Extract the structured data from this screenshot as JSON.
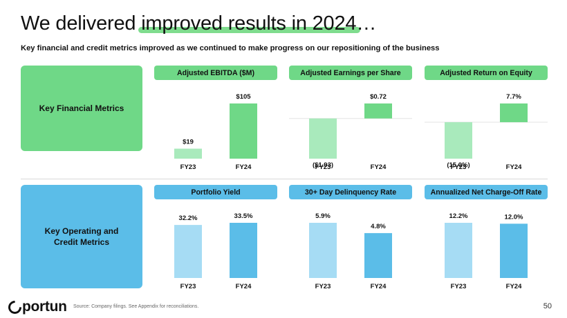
{
  "header": {
    "title_pre": "We delivered ",
    "title_highlight": "improved results in 2024",
    "title_post": "…",
    "subtitle": "Key financial and credit metrics improved as we continued to make progress on our repositioning of the business"
  },
  "sections": {
    "financial": "Key Financial Metrics",
    "operating": "Key Operating and\nCredit Metrics"
  },
  "colors": {
    "green_dark": "#6fd887",
    "green_light": "#a9eabc",
    "blue_dark": "#5bbde8",
    "blue_light": "#a6dcf4",
    "header_green": "#6fd887",
    "header_blue": "#5bbde8"
  },
  "chart_data": [
    {
      "type": "bar",
      "title": "Adjusted EBITDA ($M)",
      "categories": [
        "FY23",
        "FY24"
      ],
      "values": [
        19,
        105
      ],
      "labels": [
        "$19",
        "$105"
      ],
      "theme": "green",
      "ylim": [
        0,
        105
      ]
    },
    {
      "type": "bar",
      "title": "Adjusted Earnings per Share",
      "categories": [
        "FY23",
        "FY24"
      ],
      "values": [
        -1.93,
        0.72
      ],
      "labels": [
        "($1.93)",
        "$0.72"
      ],
      "theme": "green",
      "ylim": [
        -1.93,
        0.72
      ]
    },
    {
      "type": "bar",
      "title": "Adjusted Return on Equity",
      "categories": [
        "FY23",
        "FY24"
      ],
      "values": [
        -15.0,
        7.7
      ],
      "labels": [
        "(15.0%)",
        "7.7%"
      ],
      "theme": "green",
      "ylim": [
        -15.0,
        7.7
      ]
    },
    {
      "type": "bar",
      "title": "Portfolio Yield",
      "categories": [
        "FY23",
        "FY24"
      ],
      "values": [
        32.2,
        33.5
      ],
      "labels": [
        "32.2%",
        "33.5%"
      ],
      "theme": "blue",
      "ylim": [
        0,
        33.5
      ]
    },
    {
      "type": "bar",
      "title": "30+ Day Delinquency Rate",
      "categories": [
        "FY23",
        "FY24"
      ],
      "values": [
        5.9,
        4.8
      ],
      "labels": [
        "5.9%",
        "4.8%"
      ],
      "theme": "blue",
      "ylim": [
        0,
        5.9
      ]
    },
    {
      "type": "bar",
      "title": "Annualized Net Charge-Off Rate",
      "categories": [
        "FY23",
        "FY24"
      ],
      "values": [
        12.2,
        12.0
      ],
      "labels": [
        "12.2%",
        "12.0%"
      ],
      "theme": "blue",
      "ylim": [
        0,
        12.2
      ]
    }
  ],
  "footer": {
    "logo": "portun",
    "source": "Source: Company filings. See Appendix for reconciliations.",
    "page": "50"
  }
}
